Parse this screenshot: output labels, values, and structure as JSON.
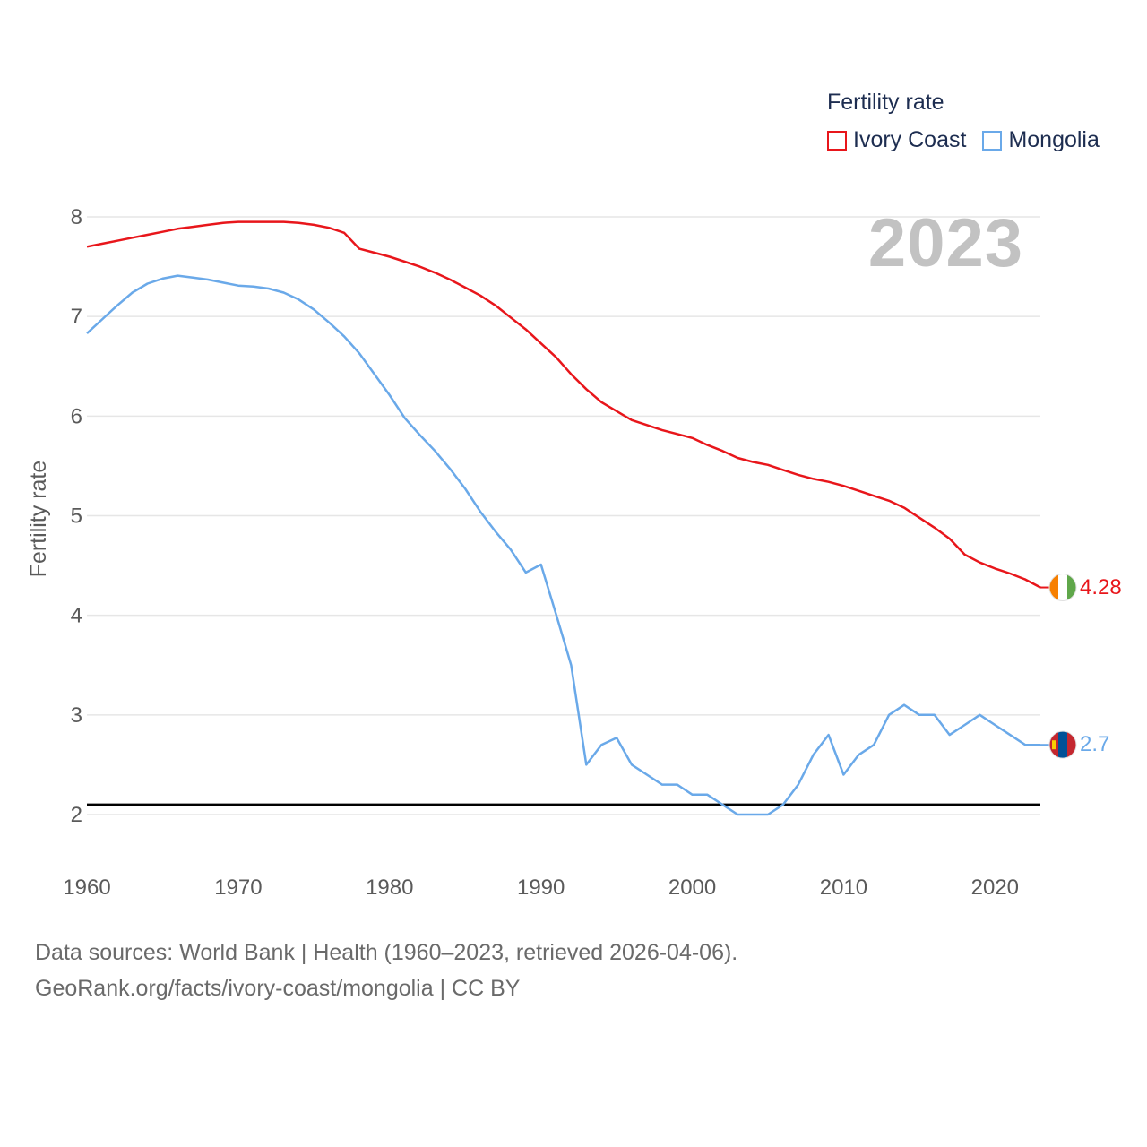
{
  "legend": {
    "title": "Fertility rate",
    "items": [
      {
        "name": "Ivory Coast",
        "color": "#e8161b"
      },
      {
        "name": "Mongolia",
        "color": "#6aa9e9"
      }
    ]
  },
  "year_label": "2023",
  "end_labels": {
    "ivory_coast": "4.28",
    "mongolia": "2.7"
  },
  "footer": {
    "line1": "Data sources: World Bank | Health (1960–2023, retrieved 2026-04-06).",
    "line2": "GeoRank.org/facts/ivory-coast/mongolia | CC BY"
  },
  "chart_data": {
    "type": "line",
    "title": "Fertility rate",
    "xlabel": "",
    "ylabel": "Fertility rate",
    "xlim": [
      1960,
      2023
    ],
    "ylim": [
      1.5,
      8.2
    ],
    "x_ticks": [
      1960,
      1970,
      1980,
      1990,
      2000,
      2010,
      2020
    ],
    "y_ticks": [
      2,
      3,
      4,
      5,
      6,
      7,
      8
    ],
    "grid": true,
    "reference_line": {
      "y": 2.1,
      "color": "#000000"
    },
    "x": [
      1960,
      1961,
      1962,
      1963,
      1964,
      1965,
      1966,
      1967,
      1968,
      1969,
      1970,
      1971,
      1972,
      1973,
      1974,
      1975,
      1976,
      1977,
      1978,
      1979,
      1980,
      1981,
      1982,
      1983,
      1984,
      1985,
      1986,
      1987,
      1988,
      1989,
      1990,
      1991,
      1992,
      1993,
      1994,
      1995,
      1996,
      1997,
      1998,
      1999,
      2000,
      2001,
      2002,
      2003,
      2004,
      2005,
      2006,
      2007,
      2008,
      2009,
      2010,
      2011,
      2012,
      2013,
      2014,
      2015,
      2016,
      2017,
      2018,
      2019,
      2020,
      2021,
      2022,
      2023
    ],
    "series": [
      {
        "name": "Ivory Coast",
        "color": "#e8161b",
        "values": [
          7.7,
          7.73,
          7.76,
          7.79,
          7.82,
          7.85,
          7.88,
          7.9,
          7.92,
          7.94,
          7.95,
          7.95,
          7.95,
          7.95,
          7.94,
          7.92,
          7.89,
          7.84,
          7.68,
          7.64,
          7.6,
          7.55,
          7.5,
          7.44,
          7.37,
          7.29,
          7.21,
          7.11,
          6.99,
          6.87,
          6.73,
          6.59,
          6.42,
          6.27,
          6.14,
          6.05,
          5.96,
          5.91,
          5.86,
          5.82,
          5.78,
          5.71,
          5.65,
          5.58,
          5.54,
          5.51,
          5.46,
          5.41,
          5.37,
          5.34,
          5.3,
          5.25,
          5.2,
          5.15,
          5.08,
          4.98,
          4.88,
          4.77,
          4.61,
          4.53,
          4.47,
          4.42,
          4.36,
          4.28
        ]
      },
      {
        "name": "Mongolia",
        "color": "#6aa9e9",
        "values": [
          6.83,
          6.97,
          7.11,
          7.24,
          7.33,
          7.38,
          7.41,
          7.39,
          7.37,
          7.34,
          7.31,
          7.3,
          7.28,
          7.24,
          7.17,
          7.07,
          6.94,
          6.8,
          6.63,
          6.42,
          6.21,
          5.98,
          5.81,
          5.65,
          5.47,
          5.27,
          5.04,
          4.84,
          4.66,
          4.43,
          4.51,
          4.01,
          3.5,
          2.5,
          2.7,
          2.77,
          2.5,
          2.4,
          2.3,
          2.3,
          2.2,
          2.2,
          2.1,
          2.0,
          2.0,
          2.0,
          2.1,
          2.3,
          2.6,
          2.8,
          2.4,
          2.6,
          2.7,
          3.0,
          3.1,
          3.0,
          3.0,
          2.8,
          2.9,
          3.0,
          2.9,
          2.8,
          2.7,
          2.7
        ]
      }
    ]
  }
}
